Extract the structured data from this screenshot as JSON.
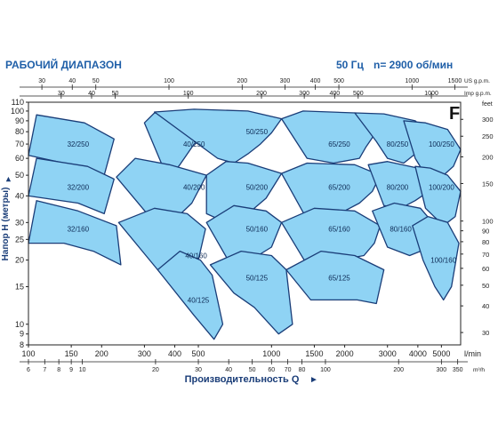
{
  "header": {
    "title": "РАБОЧИЙ ДИАПАЗОН",
    "frequency": "50 Гц",
    "speed": "n= 2900 об/мин",
    "series_letter": "F"
  },
  "colors": {
    "fill": "#8fd3f4",
    "stroke": "#1a3d78",
    "axis": "#222222",
    "title": "#1f5fa8"
  },
  "chart_data": {
    "type": "area",
    "xscale": "log",
    "yscale": "log",
    "xlim": [
      100,
      6000
    ],
    "ylim": [
      8,
      110
    ],
    "xlabel": "Производительность Q",
    "x_unit": "l/min",
    "ylabel": "Напор H (метры)",
    "x_ticks_lmin": [
      100,
      150,
      200,
      300,
      400,
      500,
      1000,
      1500,
      2000,
      3000,
      4000,
      5000
    ],
    "y_ticks_m": [
      8,
      9,
      10,
      15,
      20,
      25,
      30,
      40,
      50,
      60,
      70,
      80,
      90,
      100,
      110
    ],
    "secondary_axes": {
      "m3h": {
        "label": "m³/h",
        "ticks": [
          6,
          7,
          8,
          9,
          10,
          20,
          30,
          40,
          50,
          60,
          70,
          80,
          100,
          200,
          300,
          350
        ]
      },
      "us_gpm": {
        "label": "US g.p.m.",
        "ticks": [
          30,
          40,
          50,
          100,
          200,
          300,
          400,
          500,
          1000,
          1500
        ]
      },
      "imp_gpm": {
        "label": "Imp g.p.m.",
        "ticks": [
          30,
          40,
          50,
          100,
          200,
          300,
          400,
          500,
          1000
        ]
      },
      "feet": {
        "label": "feet",
        "ticks": [
          30,
          40,
          50,
          60,
          70,
          80,
          90,
          100,
          150,
          200,
          250,
          300
        ]
      }
    },
    "series": [
      {
        "name": "32/250",
        "label_at": [
          160,
          70
        ],
        "polygon": [
          [
            100,
            62
          ],
          [
            108,
            96
          ],
          [
            170,
            88
          ],
          [
            225,
            74
          ],
          [
            205,
            50
          ],
          [
            150,
            56
          ]
        ]
      },
      {
        "name": "32/200",
        "label_at": [
          160,
          44
        ],
        "polygon": [
          [
            100,
            40
          ],
          [
            108,
            60
          ],
          [
            175,
            55
          ],
          [
            225,
            48
          ],
          [
            205,
            33
          ],
          [
            160,
            37
          ]
        ]
      },
      {
        "name": "32/160",
        "label_at": [
          160,
          28
        ],
        "polygon": [
          [
            100,
            24
          ],
          [
            108,
            38
          ],
          [
            160,
            34
          ],
          [
            230,
            29
          ],
          [
            240,
            19
          ],
          [
            185,
            22
          ],
          [
            140,
            24
          ]
        ]
      },
      {
        "name": "40/250",
        "label_at": [
          480,
          70
        ],
        "polygon": [
          [
            300,
            88
          ],
          [
            330,
            98
          ],
          [
            450,
            94
          ],
          [
            600,
            88
          ],
          [
            540,
            76
          ],
          [
            480,
            70
          ],
          [
            420,
            56
          ],
          [
            375,
            48
          ]
        ]
      },
      {
        "name": "40/200",
        "label_at": [
          480,
          44
        ],
        "polygon": [
          [
            230,
            49
          ],
          [
            275,
            60
          ],
          [
            380,
            56
          ],
          [
            540,
            50
          ],
          [
            470,
            37
          ],
          [
            400,
            31
          ],
          [
            330,
            30
          ]
        ]
      },
      {
        "name": "40/160",
        "label_at": [
          490,
          21
        ],
        "polygon": [
          [
            235,
            30
          ],
          [
            330,
            35
          ],
          [
            450,
            33
          ],
          [
            535,
            28
          ],
          [
            500,
            20
          ],
          [
            470,
            15
          ],
          [
            410,
            14
          ],
          [
            340,
            18
          ]
        ]
      },
      {
        "name": "40/125",
        "label_at": [
          500,
          13
        ],
        "polygon": [
          [
            340,
            18
          ],
          [
            420,
            22
          ],
          [
            510,
            20
          ],
          [
            570,
            17
          ],
          [
            630,
            10
          ],
          [
            580,
            8.5
          ],
          [
            480,
            11
          ]
        ]
      },
      {
        "name": "50/250",
        "label_at": [
          870,
          80
        ],
        "polygon": [
          [
            330,
            99
          ],
          [
            480,
            102
          ],
          [
            800,
            100
          ],
          [
            1100,
            92
          ],
          [
            1000,
            79
          ],
          [
            900,
            70
          ],
          [
            800,
            63
          ],
          [
            700,
            57
          ],
          [
            600,
            60
          ]
        ]
      },
      {
        "name": "50/200",
        "label_at": [
          870,
          44
        ],
        "polygon": [
          [
            540,
            50
          ],
          [
            650,
            58
          ],
          [
            800,
            57
          ],
          [
            1100,
            51
          ],
          [
            950,
            39
          ],
          [
            800,
            33
          ],
          [
            650,
            30
          ],
          [
            540,
            33
          ]
        ]
      },
      {
        "name": "50/160",
        "label_at": [
          870,
          28
        ],
        "polygon": [
          [
            540,
            30
          ],
          [
            700,
            36
          ],
          [
            950,
            34
          ],
          [
            1100,
            30
          ],
          [
            1000,
            23
          ],
          [
            820,
            20
          ],
          [
            680,
            19
          ]
        ]
      },
      {
        "name": "50/125",
        "label_at": [
          870,
          16.5
        ],
        "polygon": [
          [
            560,
            19
          ],
          [
            750,
            22
          ],
          [
            1000,
            21
          ],
          [
            1150,
            18
          ],
          [
            1220,
            10
          ],
          [
            1070,
            9
          ],
          [
            850,
            12
          ],
          [
            700,
            14
          ]
        ]
      },
      {
        "name": "65/250",
        "label_at": [
          1900,
          70
        ],
        "polygon": [
          [
            1100,
            92
          ],
          [
            1350,
            100
          ],
          [
            2200,
            98
          ],
          [
            2800,
            88
          ],
          [
            2600,
            75
          ],
          [
            2450,
            68
          ],
          [
            2300,
            60
          ],
          [
            1800,
            57
          ],
          [
            1400,
            60
          ]
        ]
      },
      {
        "name": "65/200",
        "label_at": [
          1900,
          44
        ],
        "polygon": [
          [
            1100,
            51
          ],
          [
            1400,
            57
          ],
          [
            2200,
            56
          ],
          [
            2800,
            50
          ],
          [
            2600,
            42
          ],
          [
            2300,
            37
          ],
          [
            1900,
            33
          ],
          [
            1400,
            31
          ]
        ]
      },
      {
        "name": "65/160",
        "label_at": [
          1900,
          28
        ],
        "polygon": [
          [
            1100,
            30
          ],
          [
            1500,
            35
          ],
          [
            2200,
            34
          ],
          [
            2800,
            29
          ],
          [
            2650,
            24
          ],
          [
            2400,
            21
          ],
          [
            1900,
            20
          ],
          [
            1400,
            19
          ]
        ]
      },
      {
        "name": "65/125",
        "label_at": [
          1900,
          16.5
        ],
        "polygon": [
          [
            1150,
            18
          ],
          [
            1600,
            22
          ],
          [
            2200,
            21
          ],
          [
            2900,
            18
          ],
          [
            2700,
            12.5
          ],
          [
            2250,
            13
          ],
          [
            1800,
            13
          ],
          [
            1450,
            13
          ]
        ]
      },
      {
        "name": "80/250",
        "label_at": [
          3300,
          70
        ],
        "polygon": [
          [
            2200,
            98
          ],
          [
            2900,
            97
          ],
          [
            3900,
            90
          ],
          [
            4400,
            80
          ],
          [
            4200,
            70
          ],
          [
            3900,
            63
          ],
          [
            3500,
            57
          ],
          [
            3000,
            60
          ],
          [
            2700,
            72
          ]
        ]
      },
      {
        "name": "80/200",
        "label_at": [
          3300,
          44
        ],
        "polygon": [
          [
            2500,
            56
          ],
          [
            3000,
            58
          ],
          [
            4000,
            54
          ],
          [
            4500,
            47
          ],
          [
            4300,
            41
          ],
          [
            3900,
            38
          ],
          [
            3400,
            35
          ],
          [
            2900,
            36
          ]
        ]
      },
      {
        "name": "80/160",
        "label_at": [
          3400,
          28
        ],
        "polygon": [
          [
            2600,
            34
          ],
          [
            3200,
            37
          ],
          [
            4100,
            35
          ],
          [
            4600,
            30
          ],
          [
            4400,
            25
          ],
          [
            4100,
            22
          ],
          [
            3700,
            21
          ],
          [
            3000,
            23
          ]
        ]
      },
      {
        "name": "100/250",
        "label_at": [
          5000,
          70
        ],
        "polygon": [
          [
            3500,
            90
          ],
          [
            4300,
            88
          ],
          [
            5300,
            82
          ],
          [
            6000,
            66
          ],
          [
            5600,
            55
          ],
          [
            5100,
            50
          ],
          [
            4700,
            48
          ],
          [
            4300,
            50
          ],
          [
            3900,
            60
          ]
        ]
      },
      {
        "name": "100/200",
        "label_at": [
          5000,
          44
        ],
        "polygon": [
          [
            3900,
            55
          ],
          [
            4500,
            54
          ],
          [
            5300,
            50
          ],
          [
            6000,
            42
          ],
          [
            5700,
            32
          ],
          [
            5300,
            30
          ],
          [
            4800,
            31
          ],
          [
            4300,
            35
          ]
        ]
      },
      {
        "name": "100/160",
        "label_at": [
          5100,
          20
        ],
        "polygon": [
          [
            3800,
            29
          ],
          [
            4400,
            32
          ],
          [
            5300,
            30
          ],
          [
            5900,
            24
          ],
          [
            5500,
            15
          ],
          [
            5100,
            13
          ],
          [
            4700,
            15
          ],
          [
            4200,
            20
          ]
        ]
      }
    ]
  }
}
